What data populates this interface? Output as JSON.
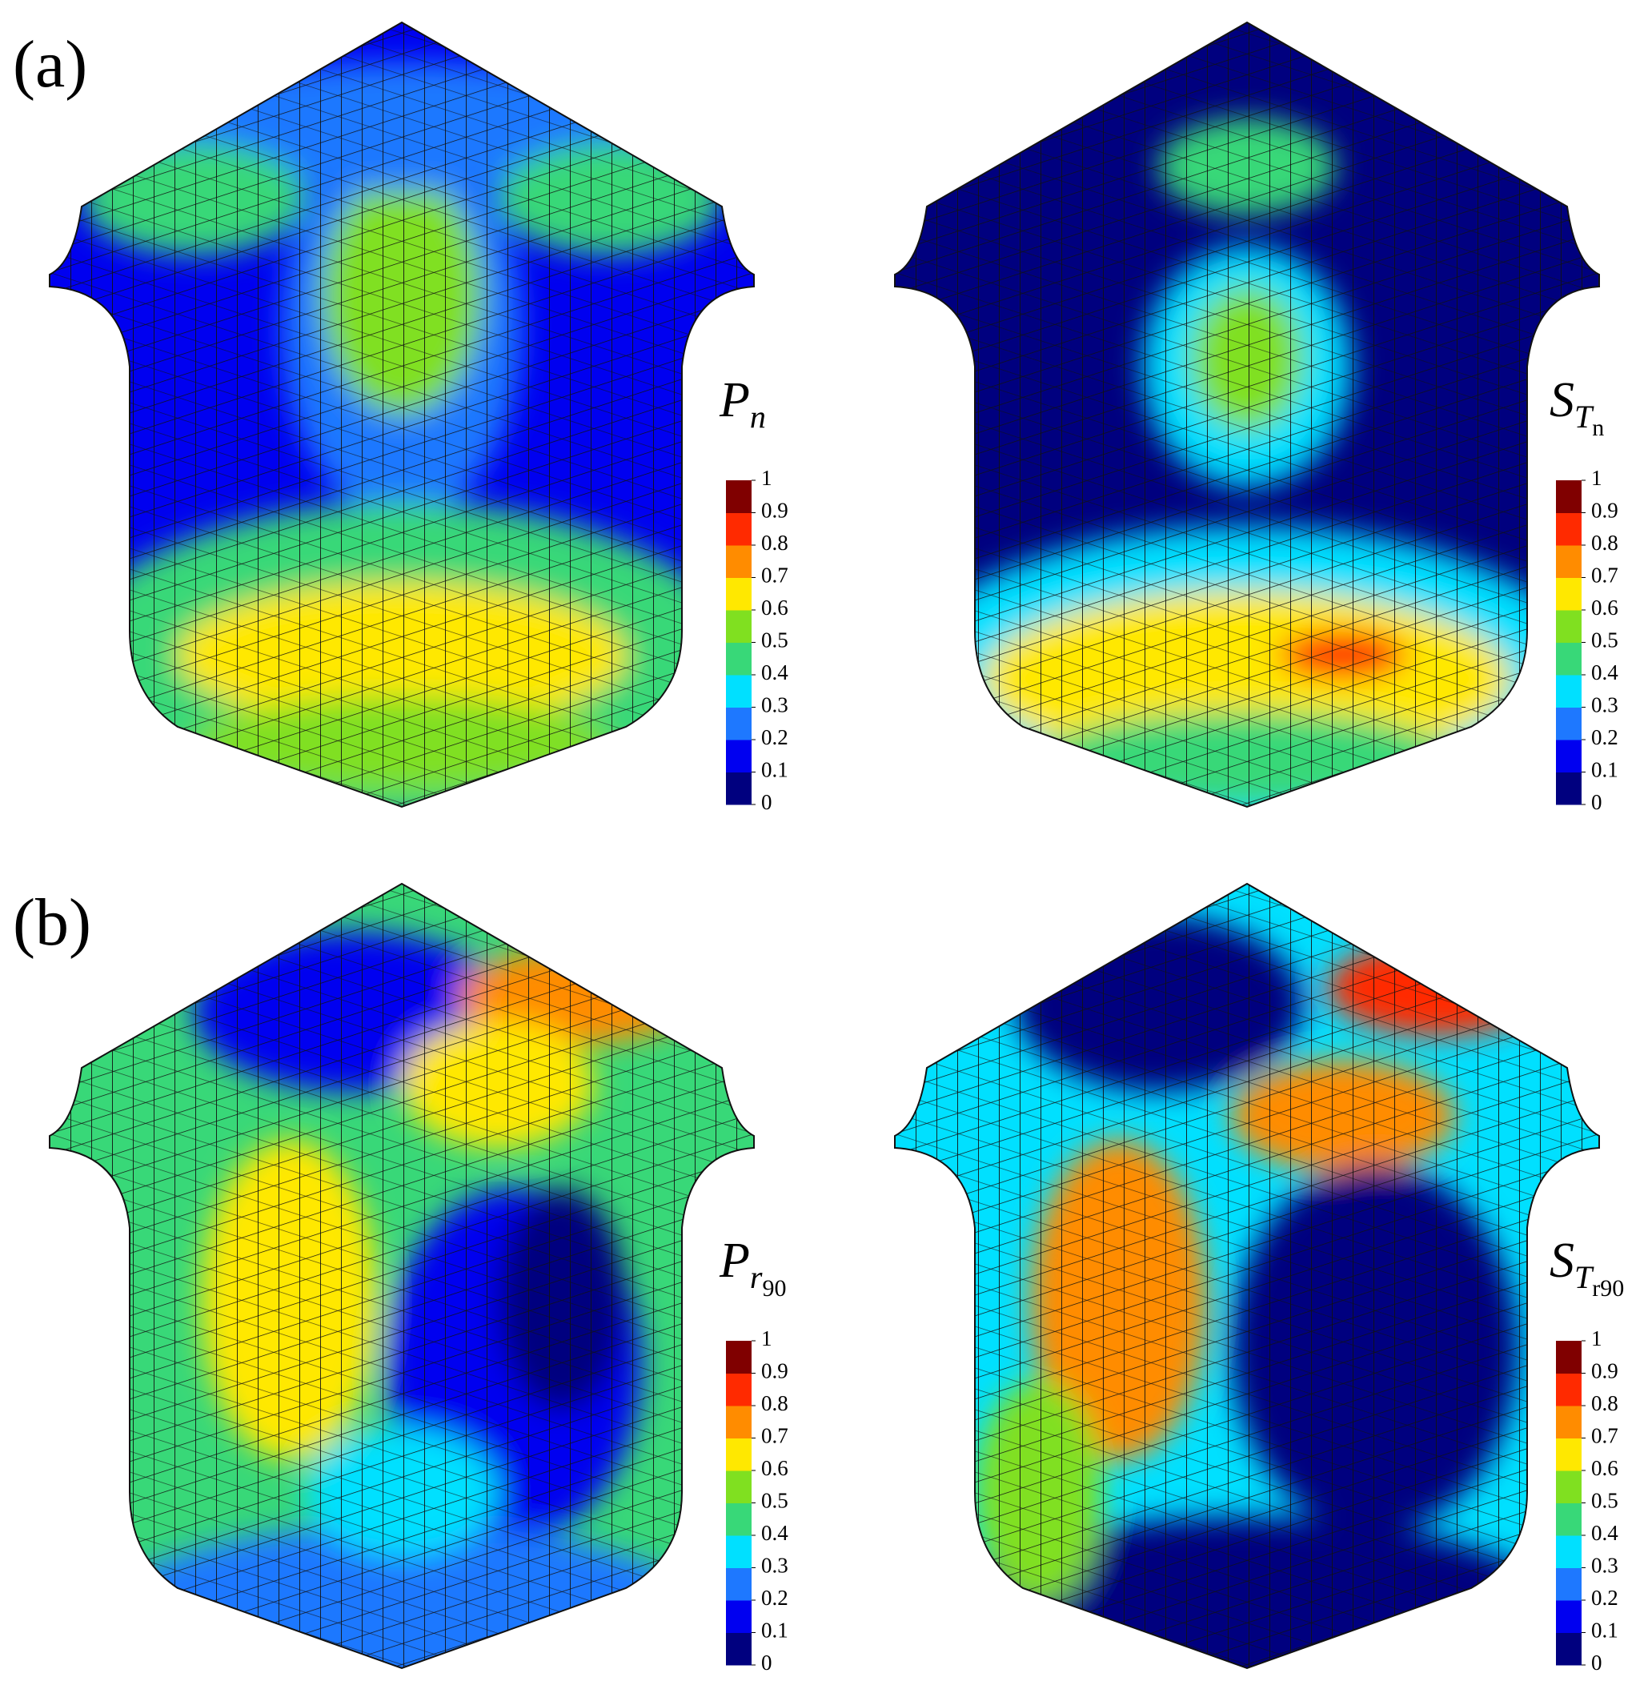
{
  "colormap": [
    "#00007f",
    "#0000f0",
    "#1e78ff",
    "#00e0ff",
    "#38d878",
    "#80e020",
    "#ffe800",
    "#ff8c00",
    "#ff2a00",
    "#800000"
  ],
  "panels": [
    {
      "label": "(a)",
      "plots": [
        {
          "title": {
            "main": "P",
            "sub": "n"
          },
          "ticks": [
            1,
            0.9,
            0.8,
            0.7,
            0.6,
            0.5,
            0.4,
            0.3,
            0.2,
            0.1,
            0
          ]
        },
        {
          "title": {
            "main": "S",
            "sub": "T",
            "subsub": "n"
          },
          "ticks": [
            1,
            0.9,
            0.8,
            0.7,
            0.6,
            0.5,
            0.4,
            0.3,
            0.2,
            0.1,
            0
          ]
        }
      ]
    },
    {
      "label": "(b)",
      "plots": [
        {
          "title": {
            "main": "P",
            "sub": "r",
            "subsub": "90"
          },
          "ticks": [
            1,
            0.9,
            0.8,
            0.7,
            0.6,
            0.5,
            0.4,
            0.3,
            0.2,
            0.1,
            0
          ]
        },
        {
          "title": {
            "main": "S",
            "sub": "T",
            "subsub": "r90"
          },
          "ticks": [
            1,
            0.9,
            0.8,
            0.7,
            0.6,
            0.5,
            0.4,
            0.3,
            0.2,
            0.1,
            0
          ]
        }
      ]
    }
  ]
}
